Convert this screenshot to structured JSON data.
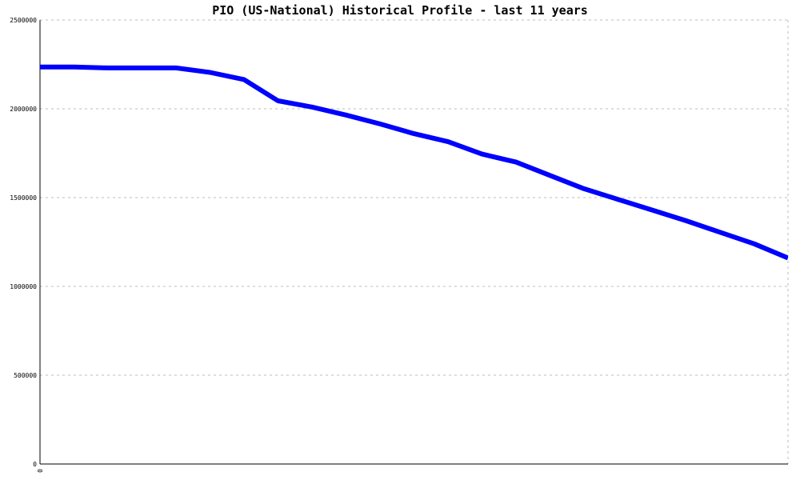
{
  "chart_data": {
    "type": "line",
    "title": "PIO (US-National) Historical Profile - last 11 years",
    "xlabel": "",
    "ylabel": "",
    "ylim": [
      0,
      2500000
    ],
    "xlim": [
      0,
      11
    ],
    "y_ticks": [
      0,
      500000,
      1000000,
      1500000,
      2000000,
      2500000
    ],
    "y_tick_labels": [
      "0",
      "500000",
      "1000000",
      "1500000",
      "2000000",
      "2500000"
    ],
    "x_ticks": [
      0
    ],
    "x_tick_labels": [
      "0"
    ],
    "grid": true,
    "series": [
      {
        "color": "#0000ff",
        "x": [
          0,
          0.5,
          1,
          1.5,
          2,
          2.5,
          3,
          3.5,
          4,
          4.5,
          5,
          5.5,
          6,
          6.5,
          7,
          7.5,
          8,
          8.5,
          9,
          9.5,
          10,
          10.5,
          11
        ],
        "values": [
          2235000,
          2235000,
          2230000,
          2230000,
          2230000,
          2205000,
          2165000,
          2045000,
          2010000,
          1965000,
          1915000,
          1860000,
          1815000,
          1745000,
          1700000,
          1625000,
          1550000,
          1490000,
          1430000,
          1370000,
          1305000,
          1240000,
          1160000
        ]
      }
    ]
  }
}
